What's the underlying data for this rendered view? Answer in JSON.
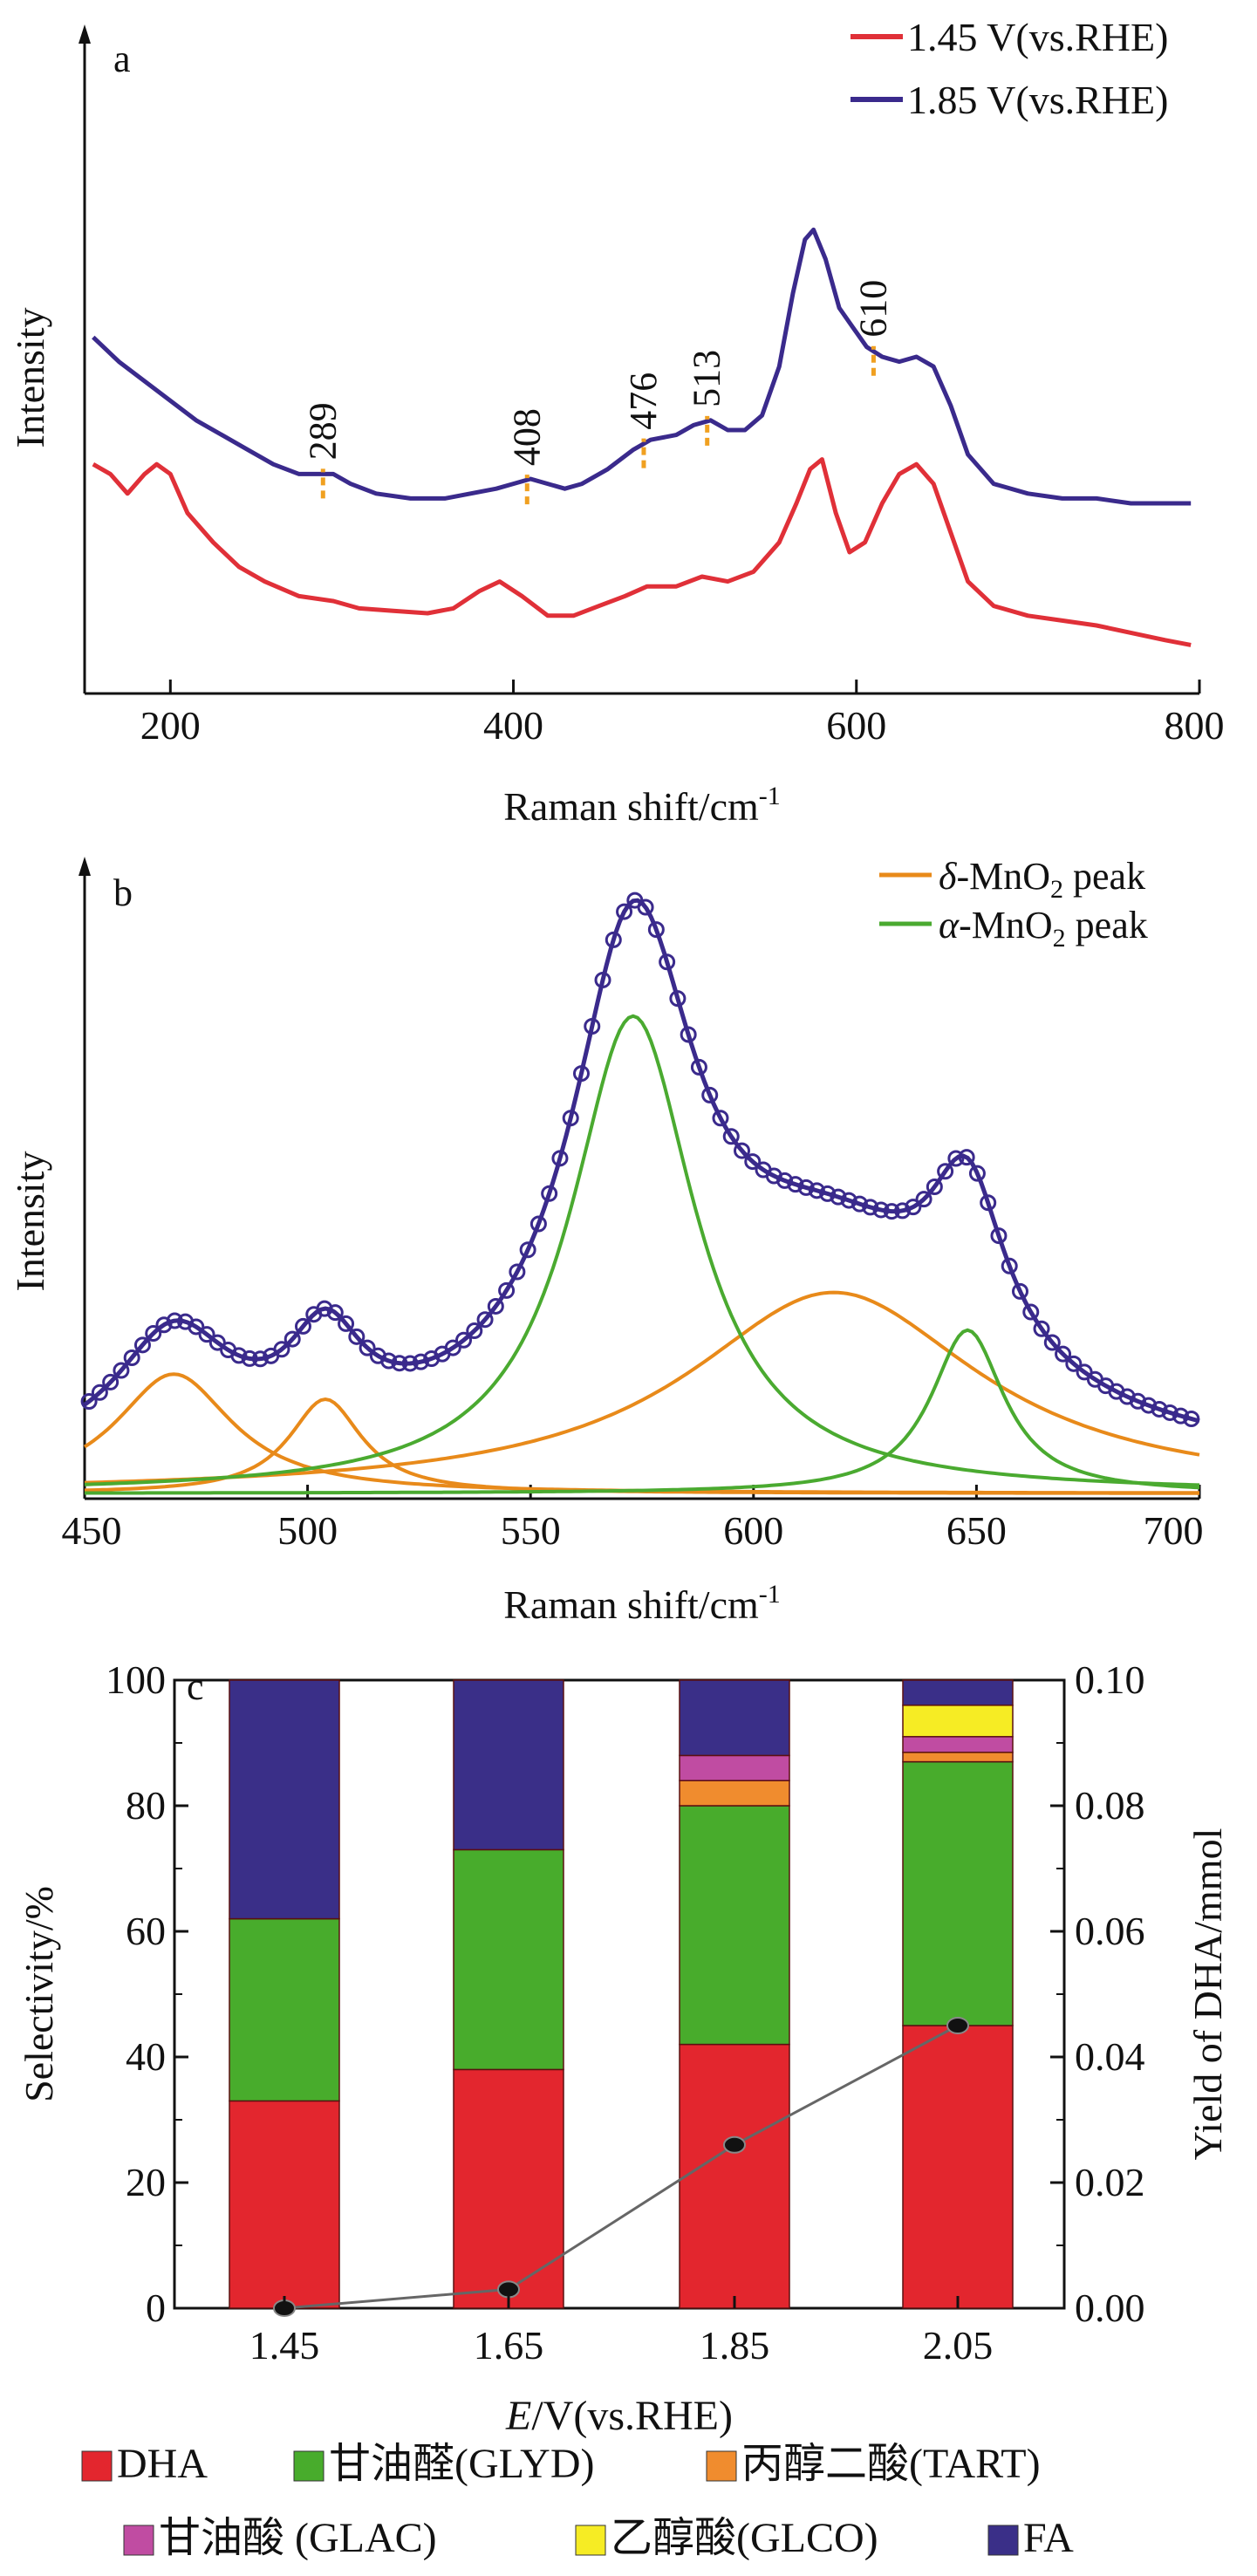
{
  "chart_data": [
    {
      "panel": "a",
      "type": "line",
      "xlabel": "Raman shift/cm",
      "xlabel_sup": "-1",
      "ylabel": "Intensity",
      "xlim": [
        150,
        800
      ],
      "ylim": [
        0,
        100
      ],
      "xticks": [
        200,
        400,
        600,
        800
      ],
      "y_ticks_shown": false,
      "legend": "top-right",
      "series": [
        {
          "name": "1.45 V(vs.RHE)",
          "color": "#e03038",
          "points": [
            [
              155,
              38
            ],
            [
              165,
              36
            ],
            [
              175,
              32
            ],
            [
              185,
              36
            ],
            [
              192,
              38
            ],
            [
              200,
              36
            ],
            [
              210,
              28
            ],
            [
              225,
              22
            ],
            [
              240,
              17
            ],
            [
              255,
              14
            ],
            [
              275,
              11
            ],
            [
              295,
              10
            ],
            [
              310,
              8.5
            ],
            [
              330,
              8
            ],
            [
              350,
              7.5
            ],
            [
              365,
              8.5
            ],
            [
              380,
              12
            ],
            [
              392,
              14
            ],
            [
              405,
              11
            ],
            [
              420,
              7
            ],
            [
              435,
              7
            ],
            [
              450,
              9
            ],
            [
              465,
              11
            ],
            [
              478,
              13
            ],
            [
              495,
              13
            ],
            [
              510,
              15
            ],
            [
              525,
              14
            ],
            [
              540,
              16
            ],
            [
              555,
              22
            ],
            [
              565,
              30
            ],
            [
              573,
              37
            ],
            [
              580,
              39
            ],
            [
              588,
              28
            ],
            [
              596,
              20
            ],
            [
              605,
              22
            ],
            [
              615,
              30
            ],
            [
              625,
              36
            ],
            [
              635,
              38
            ],
            [
              645,
              34
            ],
            [
              655,
              24
            ],
            [
              665,
              14
            ],
            [
              680,
              9
            ],
            [
              700,
              7
            ],
            [
              720,
              6
            ],
            [
              740,
              5
            ],
            [
              760,
              3.5
            ],
            [
              780,
              2
            ],
            [
              795,
              1
            ]
          ]
        },
        {
          "name": "1.85 V(vs.RHE)",
          "color": "#3a2a8c",
          "points": [
            [
              155,
              64
            ],
            [
              170,
              59
            ],
            [
              185,
              55
            ],
            [
              200,
              51
            ],
            [
              215,
              47
            ],
            [
              230,
              44
            ],
            [
              245,
              41
            ],
            [
              260,
              38
            ],
            [
              275,
              36
            ],
            [
              285,
              36
            ],
            [
              295,
              36
            ],
            [
              305,
              34
            ],
            [
              320,
              32
            ],
            [
              340,
              31
            ],
            [
              360,
              31
            ],
            [
              375,
              32
            ],
            [
              390,
              33
            ],
            [
              400,
              34
            ],
            [
              410,
              35
            ],
            [
              420,
              34
            ],
            [
              430,
              33
            ],
            [
              440,
              34
            ],
            [
              455,
              37
            ],
            [
              470,
              41
            ],
            [
              480,
              43
            ],
            [
              495,
              44
            ],
            [
              505,
              46
            ],
            [
              515,
              47
            ],
            [
              525,
              45
            ],
            [
              535,
              45
            ],
            [
              545,
              48
            ],
            [
              555,
              58
            ],
            [
              563,
              73
            ],
            [
              570,
              84
            ],
            [
              575,
              86
            ],
            [
              582,
              80
            ],
            [
              590,
              70
            ],
            [
              598,
              66
            ],
            [
              606,
              62
            ],
            [
              615,
              60
            ],
            [
              625,
              59
            ],
            [
              635,
              60
            ],
            [
              645,
              58
            ],
            [
              655,
              50
            ],
            [
              665,
              40
            ],
            [
              680,
              34
            ],
            [
              700,
              32
            ],
            [
              720,
              31
            ],
            [
              740,
              31
            ],
            [
              760,
              30
            ],
            [
              780,
              30
            ],
            [
              795,
              30
            ]
          ]
        }
      ],
      "annotations": [
        "289",
        "408",
        "476",
        "513",
        "610"
      ]
    },
    {
      "panel": "b",
      "type": "line",
      "xlabel": "Raman shift/cm",
      "xlabel_sup": "-1",
      "ylabel": "Intensity",
      "xlim": [
        450,
        700
      ],
      "ylim": [
        0,
        100
      ],
      "xticks": [
        450,
        500,
        550,
        600,
        650,
        700
      ],
      "y_ticks_shown": false,
      "legend": "top-right",
      "legend_entries": [
        {
          "prefix": "δ",
          "text": "-MnO",
          "sub": "2",
          "suffix": " peak",
          "color": "#e88a1a"
        },
        {
          "prefix": "α",
          "text": "-MnO",
          "sub": "2",
          "suffix": " peak",
          "color": "#4aaa30"
        }
      ],
      "fit_components": [
        {
          "family": "delta",
          "color": "#e88a1a",
          "center": 470,
          "height": 19,
          "width": 16
        },
        {
          "family": "delta",
          "color": "#e88a1a",
          "center": 504,
          "height": 15,
          "width": 10
        },
        {
          "family": "delta",
          "color": "#e88a1a",
          "center": 618,
          "height": 32,
          "width": 40
        },
        {
          "family": "alpha",
          "color": "#4aaa30",
          "center": 573,
          "height": 76,
          "width": 17
        },
        {
          "family": "alpha",
          "color": "#4aaa30",
          "center": 648,
          "height": 26,
          "width": 10
        }
      ],
      "envelope_color": "#3a2a8c",
      "envelope_baseline": 3
    },
    {
      "panel": "c",
      "type": "bar",
      "stacked": true,
      "categories": [
        "1.45",
        "1.65",
        "1.85",
        "2.05"
      ],
      "xlabel_italic": "E",
      "xlabel_rest": "/V(vs.RHE)",
      "ylabel": "Selectivity/%",
      "ylim": [
        0,
        100
      ],
      "yticks": [
        0,
        20,
        40,
        60,
        80,
        100
      ],
      "y2label": "Yield of DHA/mmol",
      "y2lim": [
        0,
        0.1
      ],
      "y2ticks": [
        "0.00",
        "0.02",
        "0.04",
        "0.06",
        "0.08",
        "0.10"
      ],
      "legend": "bottom",
      "series": [
        {
          "name": "DHA",
          "color": "#e3262e",
          "values": [
            33,
            38,
            42,
            45
          ]
        },
        {
          "name": "甘油醛(GLYD)",
          "color": "#48ac2c",
          "values": [
            29,
            35,
            38,
            42
          ]
        },
        {
          "name": "丙醇二酸(TART)",
          "color": "#f08c2e",
          "values": [
            0,
            0,
            4,
            1.5
          ]
        },
        {
          "name": "甘油酸 (GLAC)",
          "color": "#c04ca2",
          "values": [
            0,
            0,
            4,
            2.5
          ]
        },
        {
          "name": "乙醇酸(GLCO)",
          "color": "#f6ec24",
          "values": [
            0,
            0,
            0,
            5
          ]
        },
        {
          "name": "FA",
          "color": "#3a2f88",
          "values": [
            38,
            27,
            12,
            4
          ]
        }
      ],
      "yield_series": {
        "color": "#666666",
        "values": [
          0.0,
          0.003,
          0.026,
          0.045
        ]
      }
    }
  ],
  "panel_labels": [
    "a",
    "b",
    "c"
  ]
}
